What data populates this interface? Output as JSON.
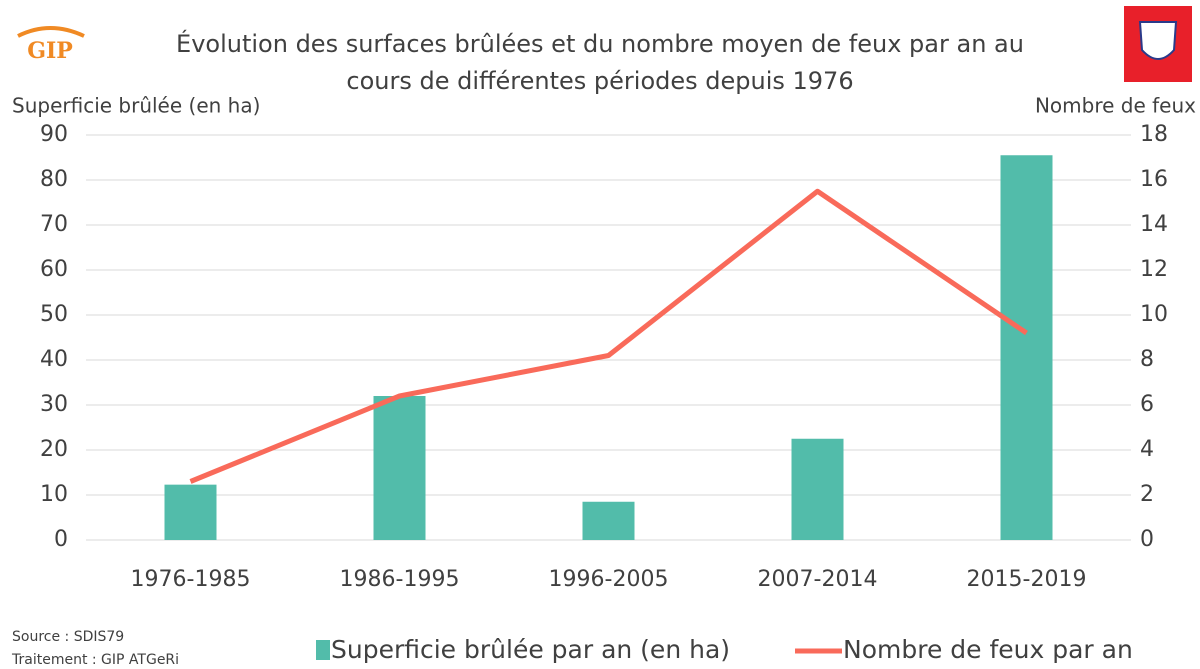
{
  "chart_data": {
    "type": "bar_line",
    "title": [
      "Évolution des surfaces brûlées et du nombre moyen de feux par an au",
      "cours de différentes périodes depuis 1976"
    ],
    "ylabel": "Superficie brûlée (en ha)",
    "y2label": "Nombre de feux",
    "categories": [
      "1976-1985",
      "1986-1995",
      "1996-2005",
      "2007-2014",
      "2015-2019"
    ],
    "series": [
      {
        "name": "Superficie brûlée par an (en ha)",
        "type": "bar",
        "color": "#52bcaa",
        "values": [
          12.3,
          32,
          8.5,
          22.5,
          85.5
        ]
      },
      {
        "name": "Nombre de feux par an",
        "type": "line",
        "axis": "y2",
        "color": "#f96a5a",
        "values": [
          2.6,
          6.4,
          8.2,
          15.5,
          9.2
        ]
      }
    ],
    "ylim": [
      0,
      90
    ],
    "yticks": [
      0,
      10,
      20,
      30,
      40,
      50,
      60,
      70,
      80,
      90
    ],
    "y2lim": [
      0,
      18
    ],
    "y2ticks": [
      0,
      2,
      4,
      6,
      8,
      10,
      12,
      14,
      16,
      18
    ],
    "grid": true,
    "notes": [
      "Source : SDIS79",
      "Traitement : GIP ATGeRi"
    ],
    "logo_text": "GIP"
  }
}
